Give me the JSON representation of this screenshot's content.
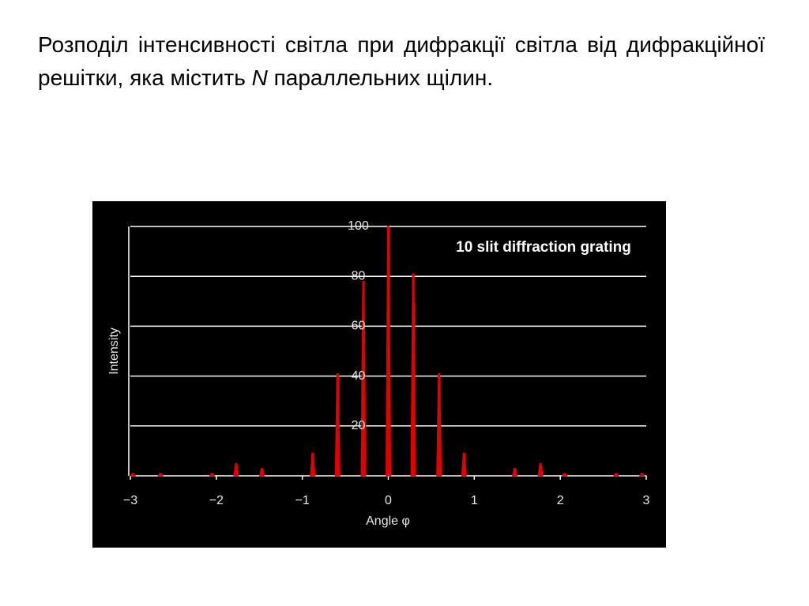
{
  "text": {
    "before": "Розподіл інтенсивності світла при дифракції світла від дифракційної решітки, яка містить",
    "italic": "N",
    "after": "параллельних щілин."
  },
  "chart_data": {
    "type": "spike",
    "title": "10 slit diffraction grating",
    "x_label": "Angle φ",
    "y_label": "Intensity",
    "x": [
      -2.97,
      -2.65,
      -2.05,
      -1.77,
      -1.47,
      -0.88,
      -0.59,
      -0.29,
      0,
      0.29,
      0.59,
      0.88,
      1.47,
      1.77,
      2.05,
      2.65,
      2.95
    ],
    "values": [
      1,
      1,
      1,
      5,
      3,
      9,
      41,
      78,
      100,
      81,
      41,
      9,
      3,
      5,
      1,
      1,
      1
    ],
    "color": "#e00000",
    "xlim": [
      -3,
      3
    ],
    "xticks": [
      {
        "value": -3,
        "label": "−3"
      },
      {
        "value": -2,
        "label": "−2"
      },
      {
        "value": -1,
        "label": "−1"
      },
      0,
      1,
      2,
      3
    ],
    "ylim": [
      0,
      100
    ],
    "yticks": [
      20,
      40,
      60,
      80,
      100
    ],
    "grid": true
  }
}
